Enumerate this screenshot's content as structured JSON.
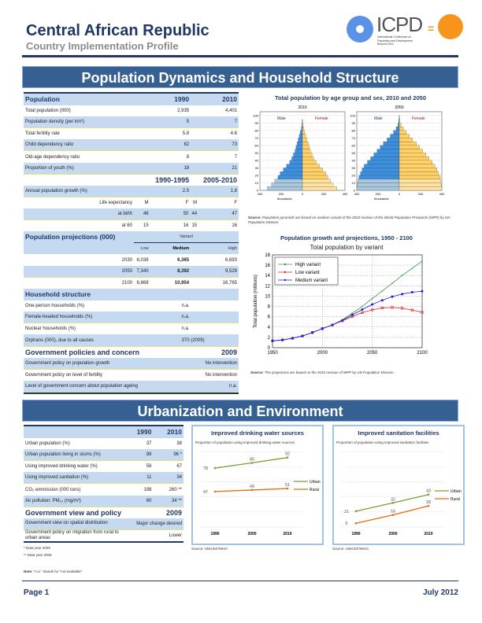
{
  "header": {
    "title": "Central African Republic",
    "subtitle": "Country Implementation Profile",
    "logo_text": "ICPD",
    "logo_caption": "International Conference on Population and Development Beyond 2014"
  },
  "section1": {
    "title": "Population Dynamics and Household Structure"
  },
  "population_table": {
    "header": [
      "Population",
      "1990",
      "2010"
    ],
    "rows": [
      [
        "Total population (000)",
        "2,935",
        "4,401"
      ],
      [
        "Population density (per km²)",
        "5",
        "7"
      ],
      [
        "Total fertility rate",
        "5.8",
        "4.6"
      ],
      [
        "Child dependency ratio",
        "82",
        "73"
      ],
      [
        "Old-age dependency ratio",
        "8",
        "7"
      ],
      [
        "Proportion of youth (%)",
        "18",
        "21"
      ]
    ],
    "period_header": [
      "1990-1995",
      "2005-2010"
    ],
    "growth": [
      "Annual population growth (%)",
      "2.5",
      "1.8"
    ],
    "life_header": [
      "Life expectancy",
      "M",
      "F",
      "M",
      "F"
    ],
    "life_rows": [
      [
        "at birth",
        "46",
        "50",
        "44",
        "47"
      ],
      [
        "at 60",
        "15",
        "16",
        "15",
        "16"
      ]
    ]
  },
  "projections": {
    "title": "Population projections (000)",
    "variant": "Variant",
    "cols": [
      "Low",
      "Medium",
      "High"
    ],
    "rows": [
      [
        "2030",
        "6,038",
        "6,365",
        "6,693"
      ],
      [
        "2050",
        "7,340",
        "8,392",
        "9,529"
      ],
      [
        "2100",
        "6,868",
        "10,954",
        "16,765"
      ]
    ]
  },
  "household": {
    "title": "Household structure",
    "rows": [
      [
        "One-person households (%)",
        "n.a."
      ],
      [
        "Female-headed households (%)",
        "n.a."
      ],
      [
        "Nuclear households (%)",
        "n.a."
      ],
      [
        "Orphans (000), due to all causes",
        "370  (2009)"
      ]
    ]
  },
  "gov_policies": {
    "title": "Government policies and concern",
    "year": "2009",
    "rows": [
      [
        "Government policy on population growth",
        "No intervention"
      ],
      [
        "Government policy on level of fertility",
        "No intervention"
      ],
      [
        "Level of government concern about population ageing",
        "n.a."
      ]
    ]
  },
  "pyramid": {
    "title": "Total population by age group and sex, 2010 and 2050",
    "male": "Male",
    "female": "Female",
    "xlabel": "thousands",
    "source_label": "Source:",
    "source": "Population pyramids are based on medium variant of the 2010 revision of the World Population Prospects (WPP) by UN Population Division.",
    "colors": {
      "male": "#3d8fe0",
      "female": "#ffd166",
      "male_young": "#a9c8de",
      "female_young": "#ffe2a0"
    }
  },
  "chart_data": [
    {
      "type": "bar",
      "title": "2010",
      "orientation": "horizontal-pyramid",
      "age_ticks": [
        "0",
        "10",
        "20",
        "30",
        "40",
        "50",
        "60",
        "70",
        "80",
        "90",
        "100"
      ],
      "x_ticks": [
        "400",
        "200",
        "0",
        "200",
        "400"
      ],
      "xlim": [
        -400,
        400
      ],
      "age_groups": [
        "0-4",
        "5-9",
        "10-14",
        "15-19",
        "20-24",
        "25-29",
        "30-34",
        "35-39",
        "40-44",
        "45-49",
        "50-54",
        "55-59",
        "60-64",
        "65-69",
        "70-74",
        "75-79",
        "80-84",
        "85-89",
        "90-94",
        "95-99"
      ],
      "series": [
        {
          "name": "Male",
          "values": [
            330,
            290,
            260,
            230,
            210,
            180,
            150,
            120,
            100,
            85,
            70,
            60,
            50,
            40,
            30,
            20,
            10,
            4,
            1,
            0
          ]
        },
        {
          "name": "Female",
          "values": [
            325,
            290,
            265,
            240,
            220,
            190,
            160,
            130,
            105,
            90,
            75,
            65,
            55,
            42,
            32,
            22,
            12,
            5,
            1,
            0
          ]
        }
      ]
    },
    {
      "type": "bar",
      "title": "2050",
      "orientation": "horizontal-pyramid",
      "age_ticks": [
        "0",
        "10",
        "20",
        "30",
        "40",
        "50",
        "60",
        "70",
        "80",
        "90",
        "100"
      ],
      "x_ticks": [
        "400",
        "200",
        "0",
        "200",
        "400"
      ],
      "xlim": [
        -400,
        400
      ],
      "age_groups": [
        "0-4",
        "5-9",
        "10-14",
        "15-19",
        "20-24",
        "25-29",
        "30-34",
        "35-39",
        "40-44",
        "45-49",
        "50-54",
        "55-59",
        "60-64",
        "65-69",
        "70-74",
        "75-79",
        "80-84",
        "85-89",
        "90-94",
        "95-99"
      ],
      "series": [
        {
          "name": "Male",
          "values": [
            400,
            395,
            390,
            380,
            365,
            350,
            330,
            300,
            270,
            240,
            210,
            180,
            150,
            115,
            85,
            55,
            30,
            12,
            4,
            1
          ]
        },
        {
          "name": "Female",
          "values": [
            400,
            395,
            390,
            385,
            370,
            355,
            335,
            310,
            280,
            250,
            220,
            190,
            160,
            125,
            95,
            65,
            38,
            16,
            5,
            1
          ]
        }
      ]
    },
    {
      "type": "line",
      "title": "Population growth and projections, 1950 - 2100",
      "subtitle": "Total population by variant",
      "ylabel": "Total population (millions)",
      "xlim": [
        1950,
        2100
      ],
      "ylim": [
        0,
        18
      ],
      "x_ticks": [
        "1950",
        "2000",
        "2050",
        "2100"
      ],
      "y_ticks": [
        "0",
        "2",
        "4",
        "6",
        "8",
        "10",
        "12",
        "14",
        "16",
        "18"
      ],
      "grid": true,
      "legend": "top-left",
      "x": [
        1950,
        1960,
        1970,
        1980,
        1990,
        2000,
        2010,
        2020,
        2030,
        2040,
        2050,
        2060,
        2070,
        2080,
        2090,
        2100
      ],
      "series": [
        {
          "name": "High variant",
          "color": "#3a9a3a",
          "values": [
            1.33,
            1.5,
            1.83,
            2.27,
            2.94,
            3.7,
            4.4,
            5.4,
            6.69,
            8.0,
            9.53,
            11.0,
            12.5,
            14.0,
            15.4,
            16.77
          ]
        },
        {
          "name": "Low variant",
          "color": "#e02020",
          "values": [
            1.33,
            1.5,
            1.83,
            2.27,
            2.94,
            3.7,
            4.4,
            5.2,
            6.04,
            6.8,
            7.34,
            7.7,
            7.8,
            7.65,
            7.3,
            6.87
          ]
        },
        {
          "name": "Medium variant",
          "color": "#1a1aee",
          "values": [
            1.33,
            1.5,
            1.83,
            2.27,
            2.94,
            3.7,
            4.4,
            5.3,
            6.37,
            7.4,
            8.39,
            9.2,
            9.9,
            10.4,
            10.75,
            10.95
          ]
        }
      ],
      "source_label": "Source:",
      "source": "The projections are based on the 2010 revision of WPP by UN Population Division."
    },
    {
      "type": "line",
      "title": "Improved drinking water sources",
      "subtitle": "Proportion of population using improved drinking water sources",
      "categories": [
        "1990",
        "2000",
        "2010"
      ],
      "ylim": [
        0,
        100
      ],
      "grid": true,
      "legend": "right",
      "series": [
        {
          "name": "Urban",
          "color": "#77a033",
          "values": [
            78,
            85,
            92
          ]
        },
        {
          "name": "Rural",
          "color": "#e46c0a",
          "values": [
            47,
            49,
            51
          ]
        }
      ],
      "source": "Source: UNICEF/WHO"
    },
    {
      "type": "line",
      "title": "Improved sanitation facilities",
      "subtitle": "Proportion of population using improved sanitation facilities",
      "categories": [
        "1990",
        "2000",
        "2010"
      ],
      "ylim": [
        0,
        100
      ],
      "grid": true,
      "legend": "right",
      "series": [
        {
          "name": "Urban",
          "color": "#77a033",
          "values": [
            21,
            32,
            43
          ]
        },
        {
          "name": "Rural",
          "color": "#e46c0a",
          "values": [
            5,
            16,
            28
          ]
        }
      ],
      "source": "Source: UNICEF/WHO"
    }
  ],
  "section2": {
    "title": "Urbanization and Environment"
  },
  "env_table": {
    "header": [
      "",
      "1990",
      "2010"
    ],
    "rows": [
      [
        "Urban population (%)",
        "37",
        "38"
      ],
      [
        "Urban population living in slums (%)",
        "88",
        "96 *"
      ],
      [
        "Using improved drinking water (%)",
        "58",
        "67"
      ],
      [
        "Using improved sanitation (%)",
        "11",
        "34"
      ],
      [
        "CO₂ emmission (000 tons)",
        "198",
        "260 **"
      ],
      [
        "Air pollution: PM₁₀ (mg/m³)",
        "60",
        "34 **"
      ]
    ],
    "gov_title": "Government view and policy",
    "gov_year": "2009",
    "gov_rows": [
      [
        "Government view on spatial distribution",
        "Major change desired"
      ],
      [
        "Government policy on migration from rural to urban areas",
        "Lower"
      ]
    ],
    "footnotes": [
      "* Data year 2009",
      "** Data year 2008"
    ],
    "note_label": "Note:",
    "note": "\"n.a.\" stands for \"not available\"."
  },
  "footer": {
    "page": "Page 1",
    "date": "July 2012"
  }
}
